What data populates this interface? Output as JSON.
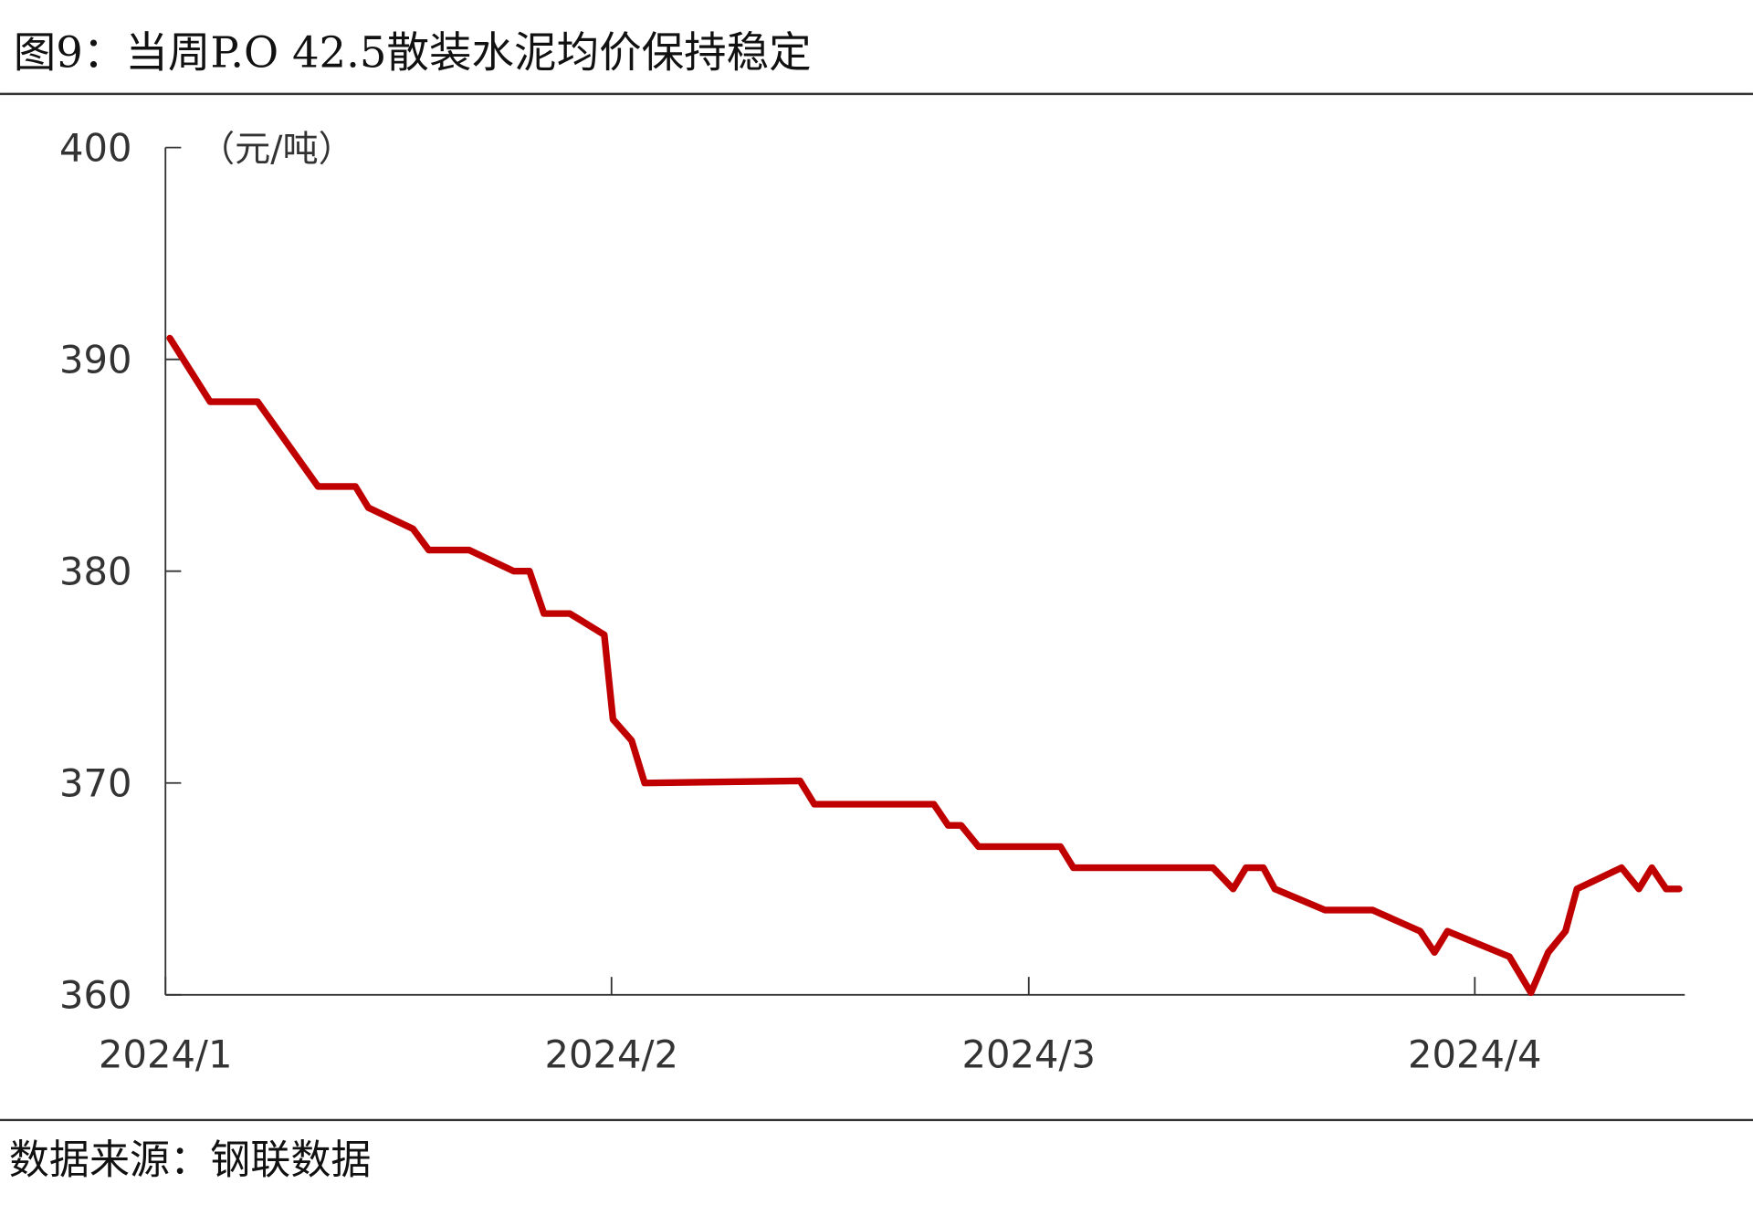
{
  "title": "图9：当周P.O 42.5散装水泥均价保持稳定",
  "source": "数据来源：钢联数据",
  "colors": {
    "line": "#C00000",
    "axis": "#333333"
  },
  "chart_data": {
    "type": "line",
    "title": "图9：当周P.O 42.5散装水泥均价保持稳定",
    "ylabel": "（元/吨）",
    "xlabel": "",
    "x_unit": "days since 2024-01-01",
    "xlim": [
      0,
      107
    ],
    "ylim": [
      360,
      400
    ],
    "yticks": [
      360,
      370,
      380,
      390,
      400
    ],
    "ytick_labels": [
      "360",
      "370",
      "380",
      "390",
      "400"
    ],
    "xticks": [
      0,
      31,
      60,
      91
    ],
    "xtick_labels": [
      "2024/1",
      "2024/2",
      "2024/3",
      "2024/4"
    ],
    "grid": false,
    "series": [
      {
        "name": "P.O 42.5散装水泥均价",
        "x": [
          0.3,
          3.1,
          6.4,
          10.6,
          13.2,
          14.1,
          17.2,
          18.3,
          21.1,
          24.2,
          25.3,
          26.3,
          28.1,
          30.5,
          31.1,
          32.4,
          33.3,
          44.1,
          45.1,
          53.4,
          54.4,
          55.3,
          56.5,
          62.2,
          63.1,
          72.8,
          74.2,
          75.1,
          76.3,
          77.1,
          80.6,
          83.9,
          87.2,
          88.2,
          89.1,
          93.4,
          94.9,
          96.1,
          97.3,
          98.1,
          101.2,
          102.4,
          103.3,
          104.3,
          105.2
        ],
        "values": [
          391,
          388,
          388,
          384,
          384,
          383,
          382,
          381,
          381,
          380,
          380,
          378,
          378,
          377,
          373,
          372,
          370,
          370.1,
          369,
          369,
          368,
          368,
          367,
          367,
          366,
          366,
          365,
          366,
          366,
          365,
          364,
          364,
          363,
          362,
          363,
          361.8,
          360.1,
          362,
          363,
          365,
          366,
          365,
          366,
          365,
          365
        ]
      }
    ]
  }
}
